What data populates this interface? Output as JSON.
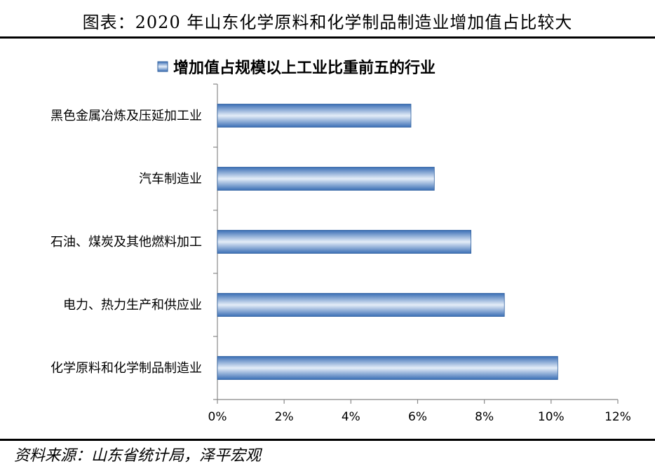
{
  "figure_title": "图表：2020 年山东化学原料和化学制品制造业增加值占比较大",
  "source": "资料来源：山东省统计局，泽平宏观",
  "chart_data": {
    "type": "bar",
    "orientation": "horizontal",
    "legend": "增加值占规模以上工业比重前五的行业",
    "legend_position": "top",
    "categories": [
      "黑色金属冶炼及压延加工业",
      "汽车制造业",
      "石油、煤炭及其他燃料加工",
      "电力、热力生产和供应业",
      "化学原料和化学制品制造业"
    ],
    "values": [
      5.8,
      6.5,
      7.6,
      8.6,
      10.2
    ],
    "xlim": [
      0,
      12
    ],
    "xticks": [
      "0%",
      "2%",
      "4%",
      "6%",
      "8%",
      "10%",
      "12%"
    ],
    "grid": false,
    "colors": {
      "bar_edge": "#2e5f9e",
      "bar_mid": "#e4edf8",
      "bar_dark": "#3a6eb5"
    }
  }
}
